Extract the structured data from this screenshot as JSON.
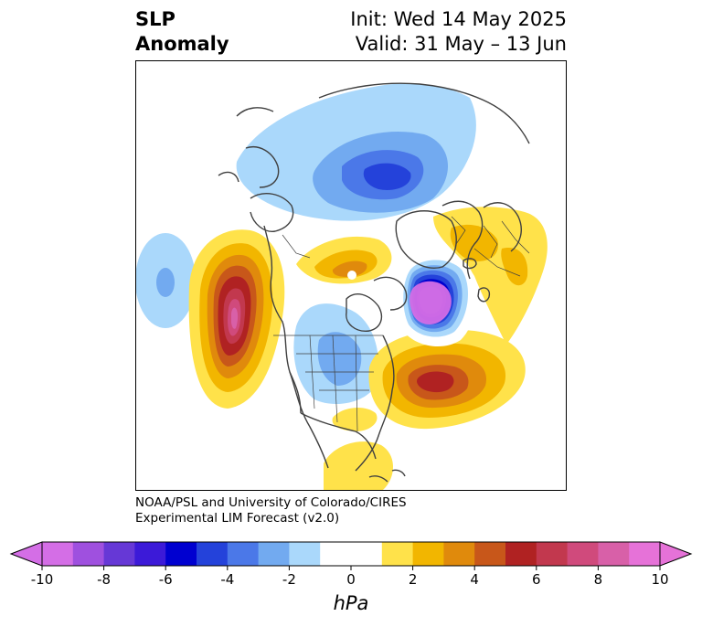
{
  "title": {
    "left_line1": "SLP",
    "left_line2": "Anomaly",
    "right_line1": "Init: Wed 14 May 2025",
    "right_line2": "Valid: 31 May – 13 Jun"
  },
  "credit": {
    "line1": "NOAA/PSL and University of Colorado/CIRES",
    "line2": "Experimental LIM Forecast (v2.0)"
  },
  "colorbar": {
    "unit": "hPa",
    "ticks": [
      "-10",
      "-8",
      "-6",
      "-4",
      "-2",
      "0",
      "2",
      "4",
      "6",
      "8",
      "10"
    ],
    "colors": [
      "#d46ee6",
      "#9f50df",
      "#6638d6",
      "#3c1ad8",
      "#0000d0",
      "#2442da",
      "#4b78e8",
      "#72aaf0",
      "#aad8fb",
      "#ffffff",
      "#ffffff",
      "#ffe24a",
      "#f2b600",
      "#e08a0c",
      "#c8571a",
      "#b02222",
      "#c2384e",
      "#d04a7c",
      "#d860a8",
      "#e672d8"
    ],
    "min_color": "#d46ee6",
    "max_color": "#e672d8",
    "range": [
      -10,
      10
    ],
    "step": 1
  },
  "map": {
    "projection": "north-polar-stereographic",
    "variable": "sea-level-pressure-anomaly",
    "units": "hPa",
    "features": [
      {
        "name": "north-pacific-high",
        "sign": "positive",
        "peak_hpa": 9
      },
      {
        "name": "greenland-sea-low",
        "sign": "negative",
        "peak_hpa": -10
      },
      {
        "name": "siberian-low",
        "sign": "negative",
        "peak_hpa": -5
      },
      {
        "name": "north-atlantic-high",
        "sign": "positive",
        "peak_hpa": 6
      },
      {
        "name": "scandinavia-ridge",
        "sign": "positive",
        "peak_hpa": 3
      },
      {
        "name": "arctic-canada-ridge",
        "sign": "positive",
        "peak_hpa": 4
      },
      {
        "name": "central-north-america-low",
        "sign": "negative",
        "peak_hpa": -3
      },
      {
        "name": "gulf-of-mexico-ridge",
        "sign": "positive",
        "peak_hpa": 2
      },
      {
        "name": "subtropical-pacific-low",
        "sign": "negative",
        "peak_hpa": -3
      }
    ]
  }
}
